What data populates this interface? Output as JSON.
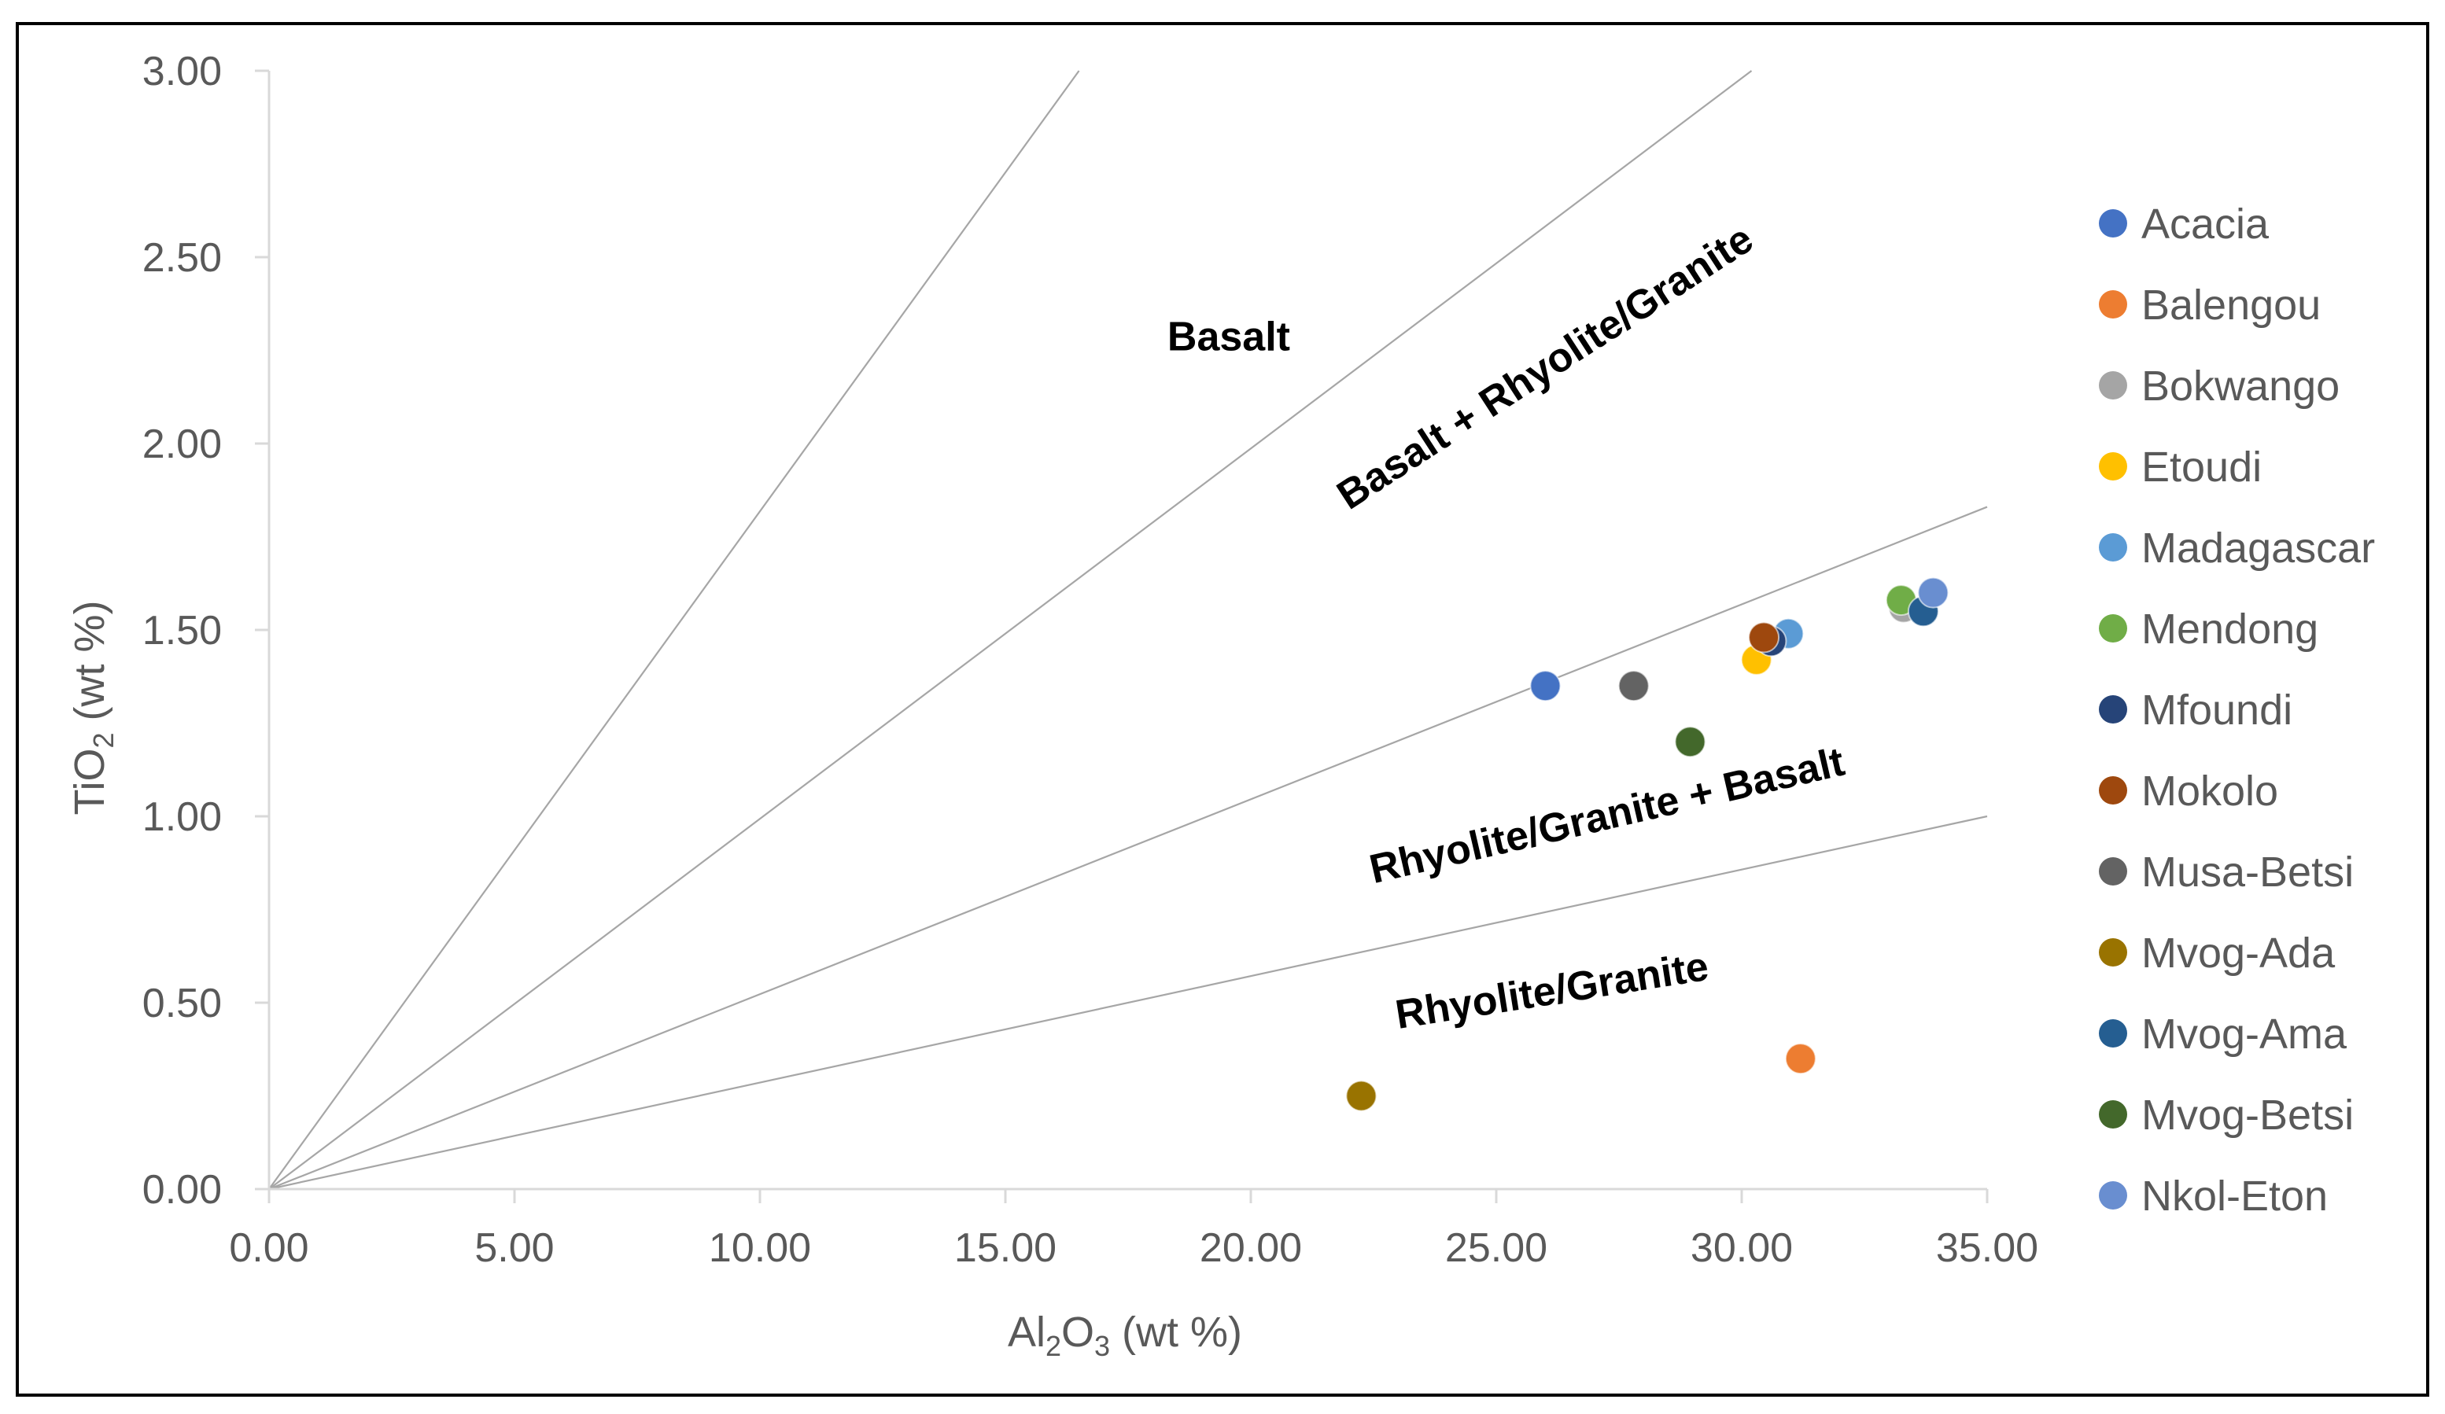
{
  "chart_data": {
    "type": "scatter",
    "xlabel": {
      "main": "Al",
      "sub1": "2",
      "mid": "O",
      "sub2": "3",
      "tail": " (wt %)"
    },
    "ylabel": {
      "main": "TiO",
      "sub": "2",
      "tail": " (wt %)"
    },
    "xlim": [
      0,
      35
    ],
    "ylim": [
      0,
      3
    ],
    "x_ticks": [
      "0.00",
      "5.00",
      "10.00",
      "15.00",
      "20.00",
      "25.00",
      "30.00",
      "35.00"
    ],
    "y_ticks": [
      "0.00",
      "0.50",
      "1.00",
      "1.50",
      "2.00",
      "2.50",
      "3.00"
    ],
    "reference_lines": [
      {
        "name": "basalt-boundary",
        "from": [
          0,
          0
        ],
        "to": [
          16.5,
          3.0
        ]
      },
      {
        "name": "basalt-rhyolite-boundary",
        "from": [
          0,
          0
        ],
        "to": [
          30.2,
          3.0
        ]
      },
      {
        "name": "rhyolite-basalt-boundary",
        "from": [
          0,
          0
        ],
        "to": [
          35,
          1.83
        ]
      },
      {
        "name": "rhyolite-boundary",
        "from": [
          0,
          0
        ],
        "to": [
          35,
          1.0
        ]
      }
    ],
    "region_labels": [
      {
        "text": "Basalt",
        "at": [
          18.3,
          2.25
        ],
        "rotate": 0
      },
      {
        "text": "Basalt + Rhyolite/Granite",
        "at": [
          22.0,
          1.82
        ],
        "rotate": -33
      },
      {
        "text": "Rhyolite/Granite + Basalt",
        "at": [
          22.5,
          0.82
        ],
        "rotate": -13
      },
      {
        "text": "Rhyolite/Granite",
        "at": [
          23.0,
          0.43
        ],
        "rotate": -9
      }
    ],
    "series": [
      {
        "name": "Acacia",
        "color": "#4472c4",
        "points": [
          [
            26.0,
            1.35
          ]
        ]
      },
      {
        "name": "Balengou",
        "color": "#ed7d31",
        "points": [
          [
            31.2,
            0.35
          ]
        ]
      },
      {
        "name": "Bokwango",
        "color": "#a5a5a5",
        "points": [
          [
            33.3,
            1.56
          ]
        ]
      },
      {
        "name": "Etoudi",
        "color": "#ffc000",
        "points": [
          [
            30.3,
            1.42
          ]
        ]
      },
      {
        "name": "Madagascar",
        "color": "#5b9bd5",
        "points": [
          [
            30.95,
            1.49
          ]
        ]
      },
      {
        "name": "Mendong",
        "color": "#70ad47",
        "points": [
          [
            33.25,
            1.58
          ]
        ]
      },
      {
        "name": "Mfoundi",
        "color": "#264478",
        "points": [
          [
            30.6,
            1.47
          ]
        ]
      },
      {
        "name": "Mokolo",
        "color": "#9e480e",
        "points": [
          [
            30.45,
            1.48
          ]
        ]
      },
      {
        "name": "Musa-Betsi",
        "color": "#636363",
        "points": [
          [
            27.8,
            1.35
          ]
        ]
      },
      {
        "name": "Mvog-Ada",
        "color": "#997300",
        "points": [
          [
            22.25,
            0.25
          ]
        ]
      },
      {
        "name": "Mvog-Ama",
        "color": "#255e91",
        "points": [
          [
            33.7,
            1.55
          ]
        ]
      },
      {
        "name": "Mvog-Betsi",
        "color": "#43682b",
        "points": [
          [
            28.95,
            1.2
          ]
        ]
      },
      {
        "name": "Nkol-Eton",
        "color": "#698ed0",
        "points": [
          [
            33.9,
            1.6
          ]
        ]
      }
    ]
  }
}
